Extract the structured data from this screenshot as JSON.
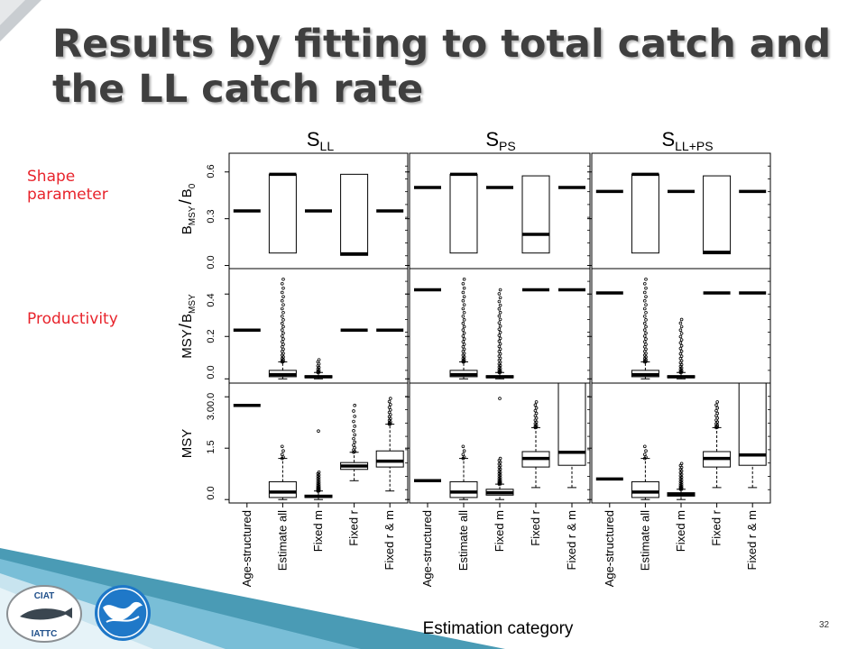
{
  "slide": {
    "title": "Results by fitting to total catch and the LL catch rate",
    "shape_label": "Shape parameter",
    "productivity_label": "Productivity",
    "page_number": "32"
  },
  "logos": {
    "iattc_top_text": "CIAT",
    "iattc_bottom_text": "IATTC",
    "colors": {
      "accent_blue": "#1f78c8",
      "footer_teal": "#2a8aa8",
      "label_red": "#e8242c"
    }
  },
  "chart_data": {
    "type": "boxplot",
    "xlabel": "Estimation category",
    "categories": [
      "Age-structured",
      "Estimate all",
      "Fixed m",
      "Fixed r",
      "Fixed r & m"
    ],
    "column_titles": [
      {
        "main": "S",
        "sub": "LL"
      },
      {
        "main": "S",
        "sub": "PS"
      },
      {
        "main": "S",
        "sub": "LL+PS"
      }
    ],
    "rows": [
      {
        "id": "bmsy_b0",
        "ylabel": {
          "p1": "B",
          "s1": "MSY",
          "p2": "/",
          "p3": "B",
          "s2": "0"
        },
        "ylim": [
          -0.02,
          0.72
        ],
        "ticks": [
          "0.0",
          "0.3",
          "0.6"
        ],
        "tick_values": [
          0,
          0.3,
          0.6
        ],
        "panels": [
          [
            {
              "q1": 0.35,
              "med": 0.35,
              "q3": 0.35
            },
            {
              "q1": 0.08,
              "med": 0.585,
              "q3": 0.585
            },
            {
              "q1": 0.35,
              "med": 0.35,
              "q3": 0.35
            },
            {
              "q1": 0.065,
              "med": 0.075,
              "q3": 0.585
            },
            {
              "q1": 0.35,
              "med": 0.35,
              "q3": 0.35
            }
          ],
          [
            {
              "q1": 0.5,
              "med": 0.5,
              "q3": 0.5
            },
            {
              "q1": 0.08,
              "med": 0.585,
              "q3": 0.585
            },
            {
              "q1": 0.5,
              "med": 0.5,
              "q3": 0.5
            },
            {
              "q1": 0.08,
              "med": 0.2,
              "q3": 0.575
            },
            {
              "q1": 0.5,
              "med": 0.5,
              "q3": 0.5
            }
          ],
          [
            {
              "q1": 0.475,
              "med": 0.475,
              "q3": 0.475
            },
            {
              "q1": 0.08,
              "med": 0.585,
              "q3": 0.585
            },
            {
              "q1": 0.475,
              "med": 0.475,
              "q3": 0.475
            },
            {
              "q1": 0.075,
              "med": 0.085,
              "q3": 0.575
            },
            {
              "q1": 0.475,
              "med": 0.475,
              "q3": 0.475
            }
          ]
        ]
      },
      {
        "id": "msy_bmsy",
        "ylabel": {
          "p1": "MSY",
          "p2": "/",
          "p3": "B",
          "s1": "MSY"
        },
        "ylim": [
          -0.02,
          0.52
        ],
        "ticks": [
          "0.0",
          "0.2",
          "0.4"
        ],
        "tick_values": [
          0,
          0.2,
          0.4
        ],
        "panels": [
          [
            {
              "q1": 0.23,
              "med": 0.23,
              "q3": 0.23
            },
            {
              "q1": 0.01,
              "med": 0.02,
              "q3": 0.04,
              "whi_low": 0.0,
              "whi_high": 0.08,
              "out_low": 0.08,
              "out_high": 0.47,
              "n_out": 30
            },
            {
              "q1": 0.005,
              "med": 0.01,
              "q3": 0.015,
              "whi_low": 0.0,
              "whi_high": 0.03,
              "out_low": 0.03,
              "out_high": 0.09,
              "n_out": 10
            },
            {
              "q1": 0.23,
              "med": 0.23,
              "q3": 0.23
            },
            {
              "q1": 0.23,
              "med": 0.23,
              "q3": 0.23
            }
          ],
          [
            {
              "q1": 0.42,
              "med": 0.42,
              "q3": 0.42
            },
            {
              "q1": 0.01,
              "med": 0.02,
              "q3": 0.04,
              "whi_low": 0.0,
              "whi_high": 0.08,
              "out_low": 0.08,
              "out_high": 0.47,
              "n_out": 30
            },
            {
              "q1": 0.005,
              "med": 0.01,
              "q3": 0.015,
              "whi_low": 0.0,
              "whi_high": 0.03,
              "out_low": 0.03,
              "out_high": 0.42,
              "n_out": 34
            },
            {
              "q1": 0.42,
              "med": 0.42,
              "q3": 0.42
            },
            {
              "q1": 0.42,
              "med": 0.42,
              "q3": 0.42
            }
          ],
          [
            {
              "q1": 0.405,
              "med": 0.405,
              "q3": 0.405
            },
            {
              "q1": 0.01,
              "med": 0.02,
              "q3": 0.04,
              "whi_low": 0.0,
              "whi_high": 0.08,
              "out_low": 0.08,
              "out_high": 0.47,
              "n_out": 30
            },
            {
              "q1": 0.005,
              "med": 0.01,
              "q3": 0.015,
              "whi_low": 0.0,
              "whi_high": 0.03,
              "out_low": 0.03,
              "out_high": 0.28,
              "n_out": 24
            },
            {
              "q1": 0.405,
              "med": 0.405,
              "q3": 0.405
            },
            {
              "q1": 0.405,
              "med": 0.405,
              "q3": 0.405
            }
          ]
        ]
      },
      {
        "id": "msy",
        "ylabel": {
          "p1": "MSY"
        },
        "ylim": [
          -0.1,
          3.4
        ],
        "ticks": [
          "0.0",
          "1.5",
          "3.00.0"
        ],
        "tick_values": [
          0,
          1.5,
          3.0
        ],
        "panels": [
          [
            {
              "q1": 2.75,
              "med": 2.75,
              "q3": 2.75
            },
            {
              "q1": 0.06,
              "med": 0.22,
              "q3": 0.52,
              "whi_low": 0.0,
              "whi_high": 1.2,
              "out_low": 1.2,
              "out_high": 1.55,
              "n_out": 5
            },
            {
              "q1": 0.06,
              "med": 0.09,
              "q3": 0.13,
              "whi_low": 0.0,
              "whi_high": 0.25,
              "out_low": 0.25,
              "out_high": 0.8,
              "n_out": 22,
              "extra_out": [
                2.0
              ]
            },
            {
              "q1": 0.88,
              "med": 0.98,
              "q3": 1.08,
              "whi_low": 0.55,
              "whi_high": 1.38,
              "out_low": 1.38,
              "out_high": 2.75,
              "n_out": 14
            },
            {
              "q1": 0.95,
              "med": 1.12,
              "q3": 1.42,
              "whi_low": 0.25,
              "whi_high": 2.2,
              "out_low": 2.2,
              "out_high": 2.95,
              "n_out": 14
            }
          ],
          [
            {
              "q1": 0.55,
              "med": 0.55,
              "q3": 0.55
            },
            {
              "q1": 0.06,
              "med": 0.22,
              "q3": 0.52,
              "whi_low": 0.0,
              "whi_high": 1.2,
              "out_low": 1.2,
              "out_high": 1.55,
              "n_out": 5
            },
            {
              "q1": 0.13,
              "med": 0.2,
              "q3": 0.3,
              "whi_low": 0.0,
              "whi_high": 0.45,
              "out_low": 0.45,
              "out_high": 1.2,
              "n_out": 22,
              "extra_out": [
                2.95
              ]
            },
            {
              "q1": 0.95,
              "med": 1.2,
              "q3": 1.4,
              "whi_low": 0.35,
              "whi_high": 2.1,
              "out_low": 2.1,
              "out_high": 2.85,
              "n_out": 14
            },
            {
              "q1": 1.0,
              "med": 1.38,
              "q3": 3.4,
              "whi_low": 0.35,
              "whi_high": 3.4
            }
          ],
          [
            {
              "q1": 0.6,
              "med": 0.6,
              "q3": 0.6
            },
            {
              "q1": 0.06,
              "med": 0.22,
              "q3": 0.52,
              "whi_low": 0.0,
              "whi_high": 1.2,
              "out_low": 1.2,
              "out_high": 1.55,
              "n_out": 5
            },
            {
              "q1": 0.1,
              "med": 0.15,
              "q3": 0.2,
              "whi_low": 0.0,
              "whi_high": 0.3,
              "out_low": 0.3,
              "out_high": 1.05,
              "n_out": 22
            },
            {
              "q1": 0.95,
              "med": 1.2,
              "q3": 1.4,
              "whi_low": 0.35,
              "whi_high": 2.1,
              "out_low": 2.1,
              "out_high": 2.85,
              "n_out": 14
            },
            {
              "q1": 1.0,
              "med": 1.3,
              "q3": 3.4,
              "whi_low": 0.35,
              "whi_high": 3.4
            }
          ]
        ]
      }
    ]
  }
}
